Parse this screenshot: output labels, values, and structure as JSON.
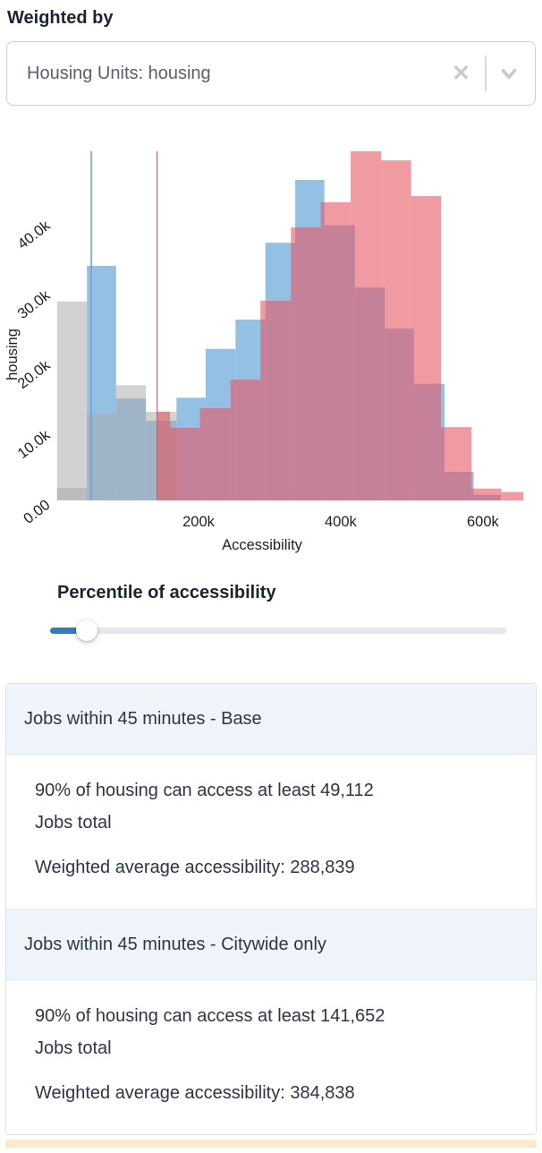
{
  "header": {
    "label": "Weighted by"
  },
  "weight_select": {
    "value": "Housing Units: housing",
    "clear_glyph": "✕",
    "icons": [
      "clear-icon",
      "chevron-down-icon"
    ]
  },
  "chart_data": {
    "type": "histogram-overlay",
    "title": "",
    "xlabel": "Accessibility",
    "ylabel": "housing",
    "xlim": [
      0,
      663000
    ],
    "ylim": [
      0,
      50000
    ],
    "grid": false,
    "x_ticks": [
      {
        "value": 200000,
        "label": "200k"
      },
      {
        "value": 400000,
        "label": "400k"
      },
      {
        "value": 600000,
        "label": "600k"
      }
    ],
    "y_ticks": [
      {
        "value": 0,
        "label": "0.00"
      },
      {
        "value": 10000,
        "label": "10.0k"
      },
      {
        "value": 20000,
        "label": "20.0k"
      },
      {
        "value": 30000,
        "label": "30.0k"
      },
      {
        "value": 40000,
        "label": "40.0k"
      }
    ],
    "series": [
      {
        "name": "base",
        "color": "#94c0e4",
        "bins": [
          [
            43000,
            84000,
            33600
          ],
          [
            84000,
            126000,
            14600
          ],
          [
            126000,
            169000,
            11400
          ],
          [
            169000,
            210000,
            14700
          ],
          [
            210000,
            252000,
            21700
          ],
          [
            252000,
            294000,
            25900
          ],
          [
            294000,
            336000,
            36900
          ],
          [
            336000,
            377000,
            45900
          ],
          [
            377000,
            420000,
            39400
          ],
          [
            420000,
            462000,
            30500
          ],
          [
            462000,
            503000,
            24600
          ],
          [
            503000,
            546000,
            16700
          ],
          [
            546000,
            587000,
            4100
          ],
          [
            587000,
            625000,
            800
          ]
        ]
      },
      {
        "name": "comparison",
        "color": "rgba(169,169,169,0.52)",
        "bins": [
          [
            1000,
            43000,
            28500
          ],
          [
            43000,
            84000,
            12400
          ],
          [
            84000,
            126000,
            16500
          ],
          [
            126000,
            169000,
            12700
          ]
        ]
      },
      {
        "name": "comparison-secondary",
        "color": "rgba(169,169,169,0.52)",
        "bins": [
          [
            1000,
            43000,
            1800
          ]
        ]
      },
      {
        "name": "citywide-only",
        "color": "rgba(230,85,97,0.59)",
        "bins": [
          [
            141000,
            160000,
            12700
          ],
          [
            160000,
            202000,
            10400
          ],
          [
            202000,
            245000,
            13200
          ],
          [
            245000,
            287000,
            17300
          ],
          [
            287000,
            330000,
            28600
          ],
          [
            330000,
            372000,
            39100
          ],
          [
            372000,
            414000,
            42700
          ],
          [
            414000,
            457000,
            50000
          ],
          [
            457000,
            499000,
            48700
          ],
          [
            499000,
            541000,
            43600
          ],
          [
            541000,
            584000,
            10500
          ],
          [
            584000,
            626000,
            1700
          ],
          [
            626000,
            657000,
            1200
          ]
        ]
      }
    ],
    "markers": [
      {
        "name": "base-percentile-marker",
        "value": 49112,
        "color": "#6ea3d8",
        "width": 1.6
      },
      {
        "name": "citywide-percentile-marker",
        "value": 141652,
        "color": "#e4646e",
        "width": 1.4
      }
    ]
  },
  "percentile": {
    "label": "Percentile of accessibility",
    "slider_position_percent": 8
  },
  "results": [
    {
      "title": "Jobs within 45 minutes - Base",
      "lines": [
        "90% of housing can access at least 49,112",
        "Jobs total"
      ],
      "average": "Weighted average accessibility: 288,839"
    },
    {
      "title": "Jobs within 45 minutes - Citywide only",
      "lines": [
        "90% of housing can access at least 141,652",
        "Jobs total"
      ],
      "average": "Weighted average accessibility: 384,838"
    }
  ]
}
